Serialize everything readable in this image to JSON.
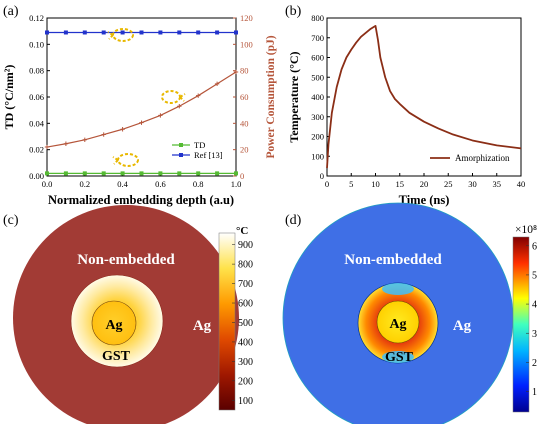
{
  "panels": {
    "a": {
      "label": "(a)"
    },
    "b": {
      "label": "(b)"
    },
    "c": {
      "label": "(c)"
    },
    "d": {
      "label": "(d)"
    }
  },
  "colors": {
    "td_green": "#55bb33",
    "ref_blue": "#2233cc",
    "power_brown": "#b5553a",
    "temp_curve": "#8b2e16",
    "arrow_yellow": "#e8b800",
    "red_disk": "#a23b35",
    "blue_disk": "#3f6fe6"
  },
  "chart_data": [
    {
      "type": "line",
      "panel": "a",
      "xlabel": "Normalized embedding depth (a.u)",
      "ylabel": "TD (°C/nm²)",
      "y2label": "Power Consumption (pJ)",
      "xlim": [
        0.0,
        1.0
      ],
      "ylim": [
        0.0,
        0.12
      ],
      "y2lim": [
        0,
        120
      ],
      "xticks": [
        "0.0",
        "0.2",
        "0.4",
        "0.6",
        "0.8",
        "1.0"
      ],
      "yticks": [
        "0.00",
        "0.02",
        "0.04",
        "0.06",
        "0.08",
        "0.10",
        "0.12"
      ],
      "y2ticks": [
        "0",
        "20",
        "40",
        "60",
        "80",
        "100",
        "120"
      ],
      "legend": {
        "position": "bottom-right",
        "entries": [
          "TD",
          "Ref [13]"
        ]
      },
      "series": [
        {
          "name": "TD",
          "axis": "left",
          "color": "#55bb33",
          "x": [
            0.0,
            0.1,
            0.2,
            0.3,
            0.4,
            0.5,
            0.6,
            0.7,
            0.8,
            0.9,
            1.0
          ],
          "y": [
            0.002,
            0.002,
            0.002,
            0.002,
            0.002,
            0.002,
            0.002,
            0.002,
            0.002,
            0.002,
            0.002
          ]
        },
        {
          "name": "Ref [13]",
          "axis": "left",
          "color": "#2233cc",
          "x": [
            0.0,
            0.1,
            0.2,
            0.3,
            0.4,
            0.5,
            0.6,
            0.7,
            0.8,
            0.9,
            1.0
          ],
          "y": [
            0.109,
            0.109,
            0.109,
            0.109,
            0.109,
            0.109,
            0.109,
            0.109,
            0.109,
            0.109,
            0.109
          ]
        },
        {
          "axis": "right",
          "color": "#b5553a",
          "x": [
            0.0,
            0.1,
            0.2,
            0.3,
            0.4,
            0.5,
            0.6,
            0.7,
            0.8,
            0.9,
            1.0
          ],
          "y": [
            22,
            24.5,
            27.5,
            31.5,
            35.5,
            40.5,
            46,
            53,
            61,
            70,
            79
          ]
        }
      ]
    },
    {
      "type": "line",
      "panel": "b",
      "xlabel": "Time (ns)",
      "ylabel": "Temperature (°C)",
      "xlim": [
        0,
        40
      ],
      "ylim": [
        0,
        800
      ],
      "xticks": [
        "0",
        "5",
        "10",
        "15",
        "20",
        "25",
        "30",
        "35",
        "40"
      ],
      "yticks": [
        "0",
        "100",
        "200",
        "300",
        "400",
        "500",
        "600",
        "700",
        "800"
      ],
      "legend": {
        "position": "bottom-right",
        "entries": [
          "Amorphization"
        ]
      },
      "series": [
        {
          "name": "Amorphization",
          "color": "#8b2e16",
          "x": [
            0,
            0.3,
            1,
            2,
            3,
            4,
            5,
            6,
            7,
            8,
            9,
            10,
            10.5,
            11,
            12,
            13,
            14,
            15,
            17,
            20,
            23,
            26,
            30,
            35,
            40
          ],
          "y": [
            40,
            160,
            320,
            450,
            540,
            600,
            640,
            675,
            705,
            725,
            745,
            760,
            690,
            600,
            500,
            430,
            390,
            365,
            320,
            275,
            240,
            210,
            180,
            155,
            140
          ]
        }
      ]
    },
    {
      "type": "heatmap",
      "panel": "c",
      "colorbar_unit": "°C",
      "colorbar_ticks": [
        "100",
        "200",
        "300",
        "400",
        "500",
        "600",
        "700",
        "800",
        "900"
      ],
      "colorbar_range": [
        50,
        960
      ],
      "labels": [
        "Non-embedded",
        "Ag",
        "Ag",
        "GST"
      ]
    },
    {
      "type": "heatmap",
      "panel": "d",
      "colorbar_unit": "×10⁸",
      "colorbar_ticks": [
        "1",
        "2",
        "3",
        "4",
        "5",
        "6"
      ],
      "colorbar_range": [
        0.3,
        6.3
      ],
      "labels": [
        "Non-embedded",
        "Ag",
        "Ag",
        "GST"
      ]
    }
  ]
}
